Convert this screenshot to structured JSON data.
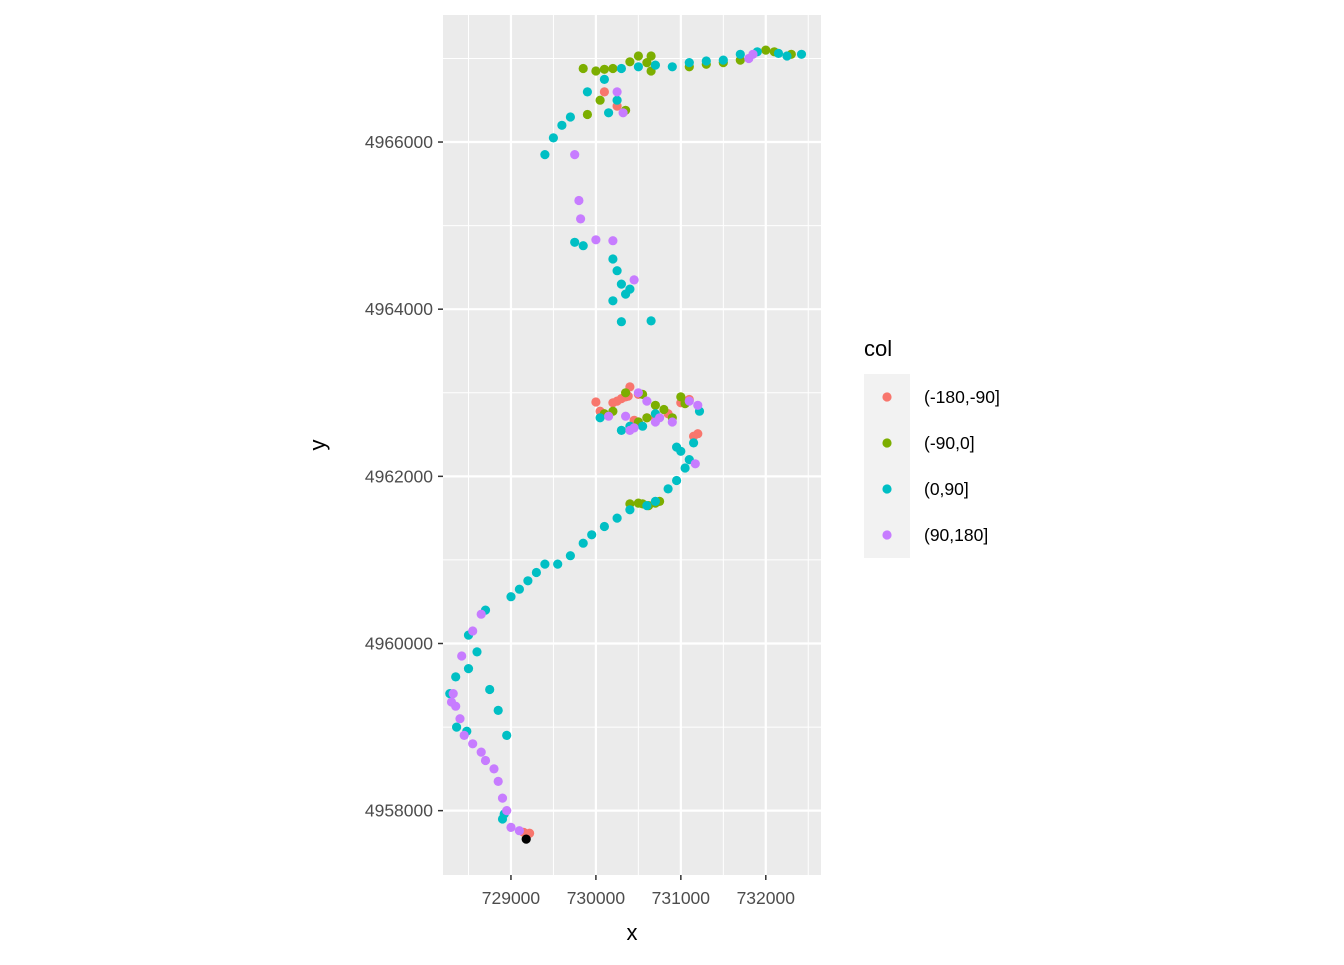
{
  "chart_data": {
    "type": "scatter",
    "title": "",
    "xlabel": "x",
    "ylabel": "y",
    "xlim": [
      728200,
      732650
    ],
    "ylim": [
      4957230,
      4967520
    ],
    "xticks": [
      729000,
      730000,
      731000,
      732000
    ],
    "xtick_labels": [
      "729000",
      "730000",
      "731000",
      "732000"
    ],
    "yticks": [
      4958000,
      4960000,
      4962000,
      4964000,
      4966000
    ],
    "ytick_labels": [
      "4958000",
      "4960000",
      "4962000",
      "4964000",
      "4966000"
    ],
    "grid": true,
    "legend": {
      "title": "col",
      "position": "right",
      "entries": [
        {
          "label": "(-180,-90]",
          "color": "#F8766D"
        },
        {
          "label": "(-90,0]",
          "color": "#7CAE00"
        },
        {
          "label": "(0,90]",
          "color": "#00BFC4"
        },
        {
          "label": "(90,180]",
          "color": "#C77CFF"
        }
      ]
    },
    "series": [
      {
        "name": "(-180,-90]",
        "color": "#F8766D",
        "x": [
          729150,
          730050,
          730000,
          730300,
          730380,
          730200,
          730250,
          730350,
          730400,
          730500,
          730450,
          730600,
          730500,
          730700,
          730850,
          731000,
          731050,
          731100,
          731200,
          731150,
          730250,
          730100,
          729220
        ],
        "y": [
          4957740,
          4962780,
          4962890,
          4962930,
          4962960,
          4962880,
          4962900,
          4962950,
          4963070,
          4962980,
          4962670,
          4962700,
          4962650,
          4962700,
          4962750,
          4962880,
          4962900,
          4962920,
          4962510,
          4962480,
          4966430,
          4966600,
          4957730
        ]
      },
      {
        "name": "(-90,0]",
        "color": "#7CAE00",
        "x": [
          730100,
          730200,
          730350,
          730500,
          730600,
          730700,
          730800,
          730900,
          730400,
          730500,
          730550,
          730620,
          730700,
          730750,
          731000,
          731050,
          730550,
          730650,
          731100,
          731300,
          731500,
          731700,
          732000,
          732100,
          732300,
          729850,
          730000,
          730100,
          730200,
          730400,
          730500,
          730600,
          730650,
          729900,
          730350,
          730050
        ],
        "y": [
          4962750,
          4962780,
          4963000,
          4962650,
          4962700,
          4962850,
          4962800,
          4962700,
          4961670,
          4961680,
          4961670,
          4961650,
          4961680,
          4961700,
          4962950,
          4962870,
          4962980,
          4967030,
          4966900,
          4966930,
          4966950,
          4966980,
          4967100,
          4967080,
          4967050,
          4966880,
          4966850,
          4966870,
          4966880,
          4966960,
          4967030,
          4966950,
          4966850,
          4966330,
          4966380,
          4966500
        ]
      },
      {
        "name": "(0,90]",
        "color": "#00BFC4",
        "x": [
          728900,
          728920,
          729000,
          729100,
          729200,
          729300,
          729400,
          729550,
          729700,
          729850,
          729950,
          730100,
          730250,
          730400,
          730600,
          730700,
          730850,
          730950,
          731050,
          731100,
          731000,
          730950,
          731150,
          731220,
          728700,
          728500,
          728350,
          728280,
          728500,
          728600,
          728750,
          728850,
          728950,
          728360,
          728480,
          730050,
          730300,
          730400,
          730550,
          730700,
          730300,
          730650,
          729400,
          729500,
          729600,
          729700,
          729900,
          730100,
          730300,
          730500,
          730700,
          730900,
          731100,
          731300,
          731500,
          731700,
          731900,
          732150,
          732250,
          732420,
          730200,
          730300,
          730350,
          730400,
          730200,
          730250,
          729750,
          729850,
          730150,
          730250
        ],
        "y": [
          4957900,
          4957960,
          4960560,
          4960650,
          4960750,
          4960850,
          4960950,
          4960950,
          4961050,
          4961200,
          4961300,
          4961400,
          4961500,
          4961600,
          4961650,
          4961700,
          4961850,
          4961950,
          4962100,
          4962200,
          4962300,
          4962350,
          4962400,
          4962780,
          4960400,
          4960100,
          4959600,
          4959400,
          4959700,
          4959900,
          4959450,
          4959200,
          4958900,
          4959000,
          4958950,
          4962700,
          4962550,
          4962600,
          4962600,
          4962750,
          4963850,
          4963860,
          4965850,
          4966050,
          4966200,
          4966300,
          4966600,
          4966750,
          4966880,
          4966900,
          4966920,
          4966900,
          4966950,
          4966970,
          4966980,
          4967050,
          4967080,
          4967060,
          4967030,
          4967050,
          4964100,
          4964300,
          4964180,
          4964240,
          4964600,
          4964460,
          4964800,
          4964760,
          4966350,
          4966500
        ]
      },
      {
        "name": "(90,180]",
        "color": "#C77CFF",
        "x": [
          729000,
          729100,
          728950,
          728900,
          728850,
          728800,
          728700,
          728650,
          728550,
          728450,
          728400,
          728350,
          728320,
          728300,
          728420,
          728550,
          728650,
          730500,
          730600,
          730750,
          730900,
          731100,
          731200,
          731170,
          730400,
          730700,
          730150,
          730350,
          730450,
          729750,
          729800,
          729820,
          730000,
          730200,
          730450,
          730320,
          730250,
          731800,
          731850
        ],
        "y": [
          4957800,
          4957760,
          4958000,
          4958150,
          4958350,
          4958500,
          4958600,
          4958700,
          4958800,
          4958900,
          4959100,
          4959250,
          4959400,
          4959300,
          4959850,
          4960150,
          4960350,
          4963000,
          4962900,
          4962700,
          4962650,
          4962900,
          4962850,
          4962150,
          4962550,
          4962650,
          4962720,
          4962720,
          4962580,
          4965850,
          4965300,
          4965080,
          4964830,
          4964820,
          4964350,
          4966350,
          4966600,
          4967000,
          4967050
        ]
      },
      {
        "name": "start",
        "color": "#000000",
        "x": [
          729180
        ],
        "y": [
          4957660
        ]
      }
    ]
  }
}
